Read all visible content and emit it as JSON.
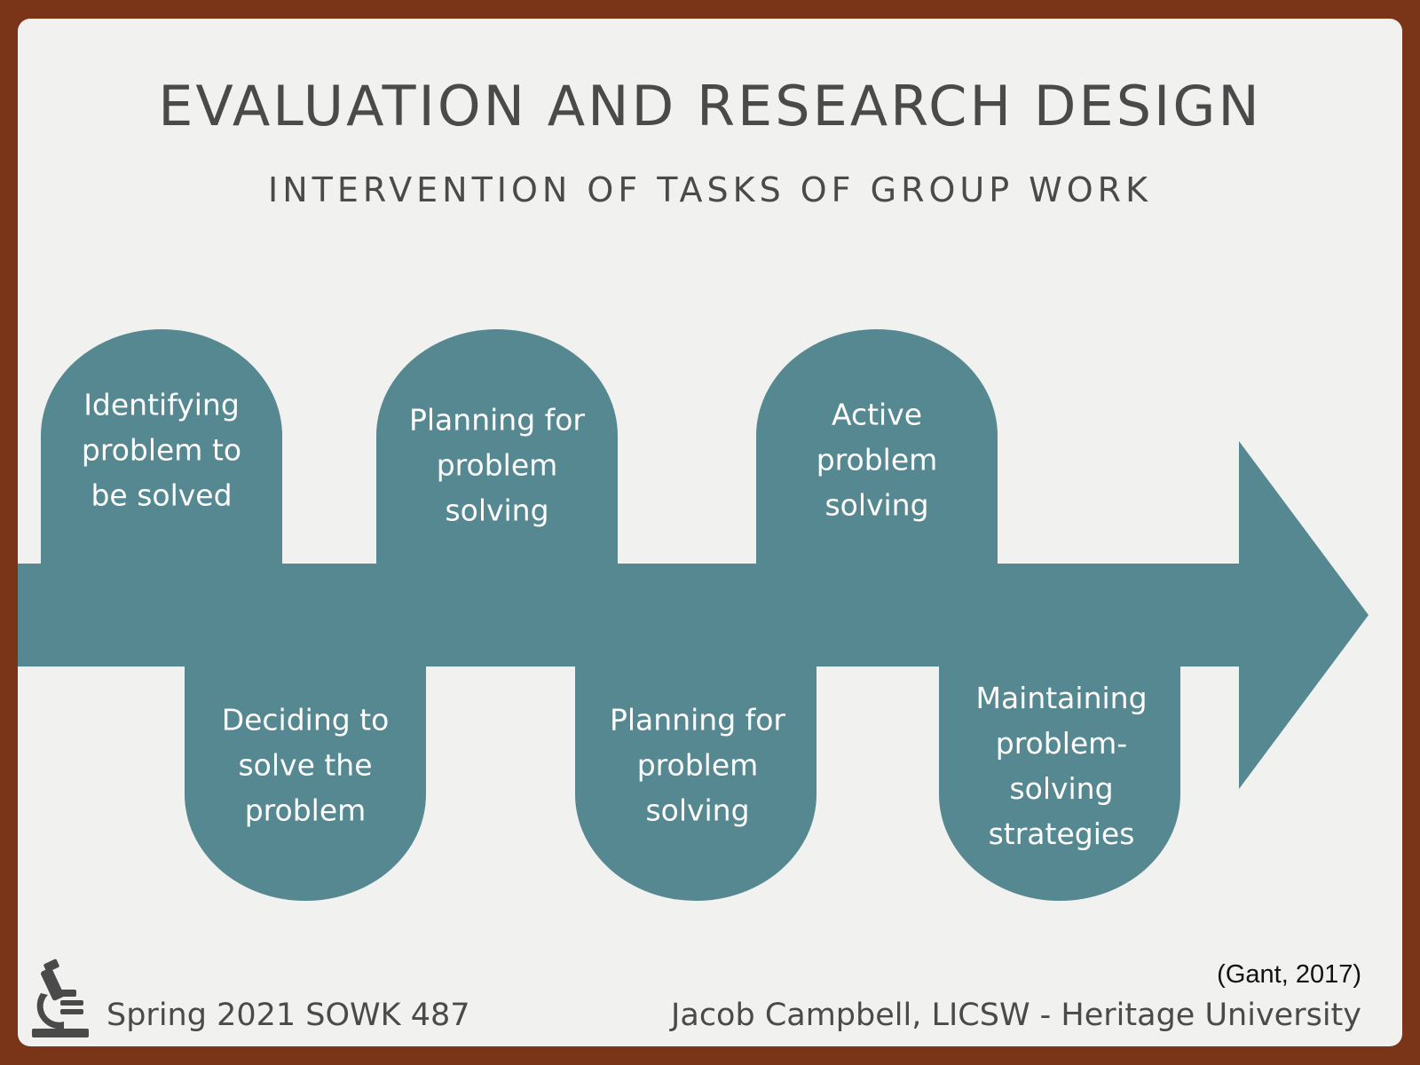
{
  "header": {
    "title": "EVALUATION AND RESEARCH DESIGN",
    "subtitle": "INTERVENTION OF TASKS OF GROUP WORK"
  },
  "process": {
    "steps": [
      {
        "label": "Identifying\nproblem to\nbe solved",
        "position": "above"
      },
      {
        "label": "Deciding to\nsolve the\nproblem",
        "position": "below"
      },
      {
        "label": "Planning for\nproblem\nsolving",
        "position": "above"
      },
      {
        "label": "Planning for\nproblem\nsolving",
        "position": "below"
      },
      {
        "label": "Active\nproblem\nsolving",
        "position": "above"
      },
      {
        "label": "Maintaining\nproblem-\nsolving\nstrategies",
        "position": "below"
      }
    ],
    "color": "#558891"
  },
  "citation": "(Gant, 2017)",
  "footer": {
    "course": "Spring 2021 SOWK 487",
    "author": "Jacob Campbell, LICSW - Heritage University"
  },
  "icons": {
    "logo": "microscope-icon"
  }
}
